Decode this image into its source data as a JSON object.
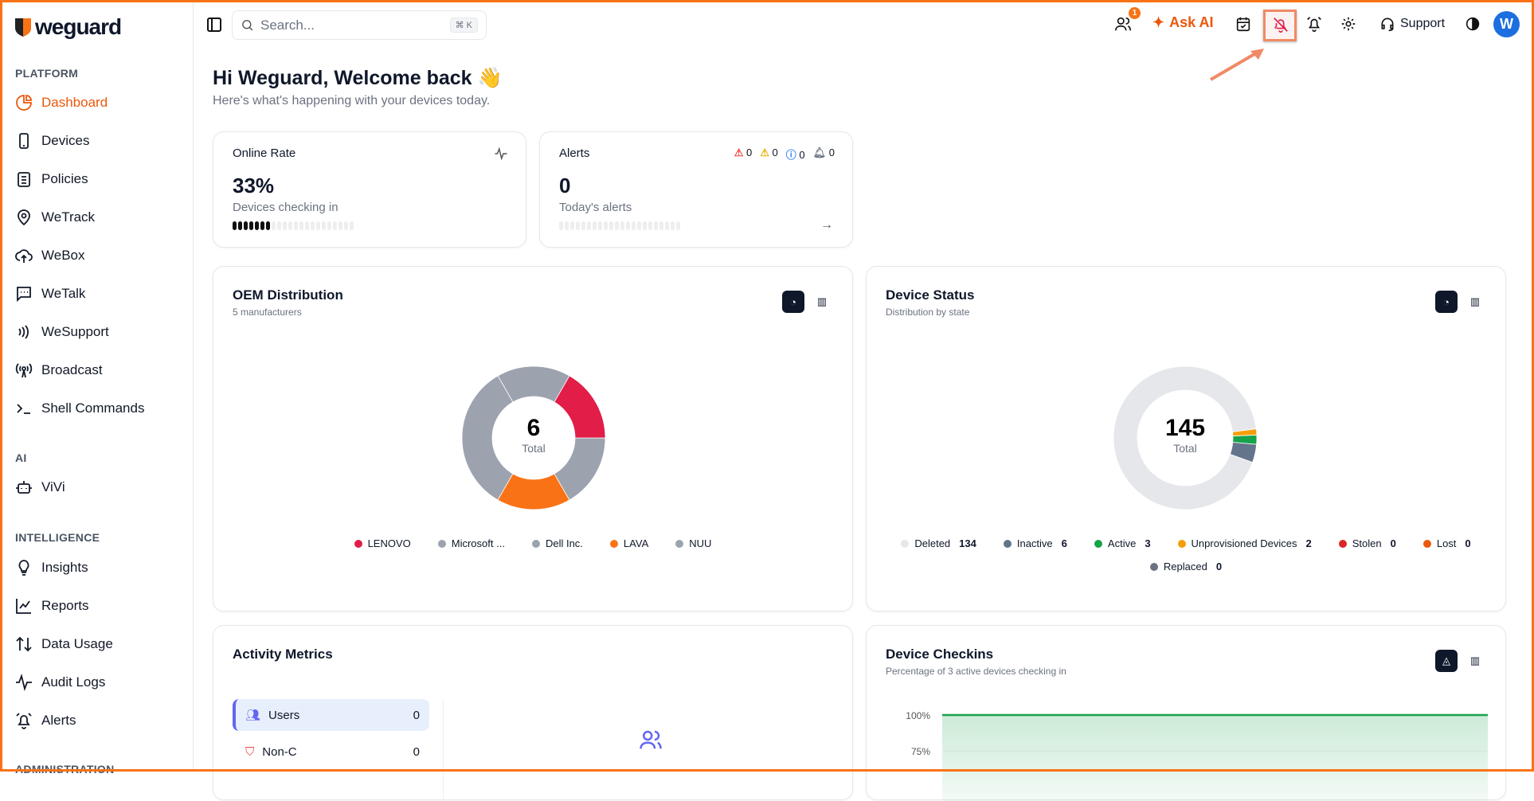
{
  "brand": {
    "name": "weguard",
    "accent": "#f97316"
  },
  "sidebar": {
    "sections": [
      {
        "label": "PLATFORM"
      },
      {
        "label": "AI"
      },
      {
        "label": "INTELLIGENCE"
      },
      {
        "label": "ADMINISTRATION"
      }
    ],
    "items": [
      {
        "label": "Dashboard",
        "icon": "pie-chart-icon",
        "active": true
      },
      {
        "label": "Devices",
        "icon": "smartphone-icon"
      },
      {
        "label": "Policies",
        "icon": "clipboard-list-icon"
      },
      {
        "label": "WeTrack",
        "icon": "map-pin-icon"
      },
      {
        "label": "WeBox",
        "icon": "cloud-upload-icon"
      },
      {
        "label": "WeTalk",
        "icon": "message-square-icon"
      },
      {
        "label": "WeSupport",
        "icon": "radio-waves-icon"
      },
      {
        "label": "Broadcast",
        "icon": "broadcast-tower-icon"
      },
      {
        "label": "Shell Commands",
        "icon": "terminal-icon"
      },
      {
        "label": "ViVi",
        "icon": "bot-icon"
      },
      {
        "label": "Insights",
        "icon": "lightbulb-icon"
      },
      {
        "label": "Reports",
        "icon": "line-chart-icon"
      },
      {
        "label": "Data Usage",
        "icon": "arrows-up-down-icon"
      },
      {
        "label": "Audit Logs",
        "icon": "activity-icon"
      },
      {
        "label": "Alerts",
        "icon": "alarm-bell-icon"
      }
    ]
  },
  "topbar": {
    "search_placeholder": "Search...",
    "shortcut": "⌘ K",
    "users_badge": "1",
    "ask_ai": "Ask AI",
    "support": "Support",
    "avatar": "W"
  },
  "welcome": {
    "title": "Hi Weguard, Welcome back 👋",
    "subtitle": "Here's what's happening with your devices today."
  },
  "online_rate": {
    "title": "Online Rate",
    "value": "33%",
    "label": "Devices checking in",
    "progress": 0.33
  },
  "alerts": {
    "title": "Alerts",
    "counts": [
      "0",
      "0",
      "0",
      "0"
    ],
    "value": "0",
    "label": "Today's alerts"
  },
  "oem": {
    "title": "OEM Distribution",
    "subtitle": "5 manufacturers",
    "total": "6",
    "total_label": "Total"
  },
  "device_status": {
    "title": "Device Status",
    "subtitle": "Distribution by state",
    "total": "145",
    "total_label": "Total"
  },
  "activity": {
    "title": "Activity Metrics",
    "rows": [
      {
        "label": "Users",
        "value": "0"
      },
      {
        "label": "Non-C",
        "value": "0"
      }
    ]
  },
  "checkins": {
    "title": "Device Checkins",
    "subtitle": "Percentage of 3 active devices checking in"
  },
  "chart_data": [
    {
      "type": "pie",
      "title": "OEM Distribution",
      "categories": [
        "LENOVO",
        "Microsoft ...",
        "Dell Inc.",
        "LAVA",
        "NUU"
      ],
      "values": [
        1,
        2,
        1,
        1,
        1
      ],
      "colors": [
        "#e11d48",
        "#9ca3af",
        "#9ca3af",
        "#f97316",
        "#9ca3af"
      ],
      "legend": "bottom"
    },
    {
      "type": "pie",
      "title": "Device Status",
      "categories": [
        "Deleted",
        "Inactive",
        "Active",
        "Unprovisioned Devices",
        "Stolen",
        "Lost",
        "Replaced"
      ],
      "values": [
        134,
        6,
        3,
        2,
        0,
        0,
        0
      ],
      "colors": [
        "#e5e7eb",
        "#64748b",
        "#16a34a",
        "#f59e0b",
        "#dc2626",
        "#ea580c",
        "#6b7280"
      ],
      "legend": "bottom"
    },
    {
      "type": "area",
      "title": "Device Checkins",
      "ytick_labels": [
        "100%",
        "75%"
      ],
      "values": [
        100,
        100
      ],
      "color": "#16a34a"
    }
  ]
}
